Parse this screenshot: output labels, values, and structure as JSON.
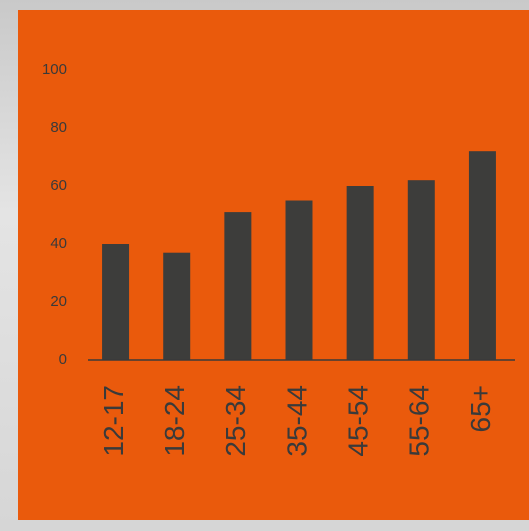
{
  "chart_data": {
    "type": "bar",
    "categories": [
      "12-17",
      "18-24",
      "25-34",
      "35-44",
      "45-54",
      "55-64",
      "65+"
    ],
    "values": [
      40,
      37,
      51,
      55,
      60,
      62,
      72
    ],
    "color": "#3d3d3b",
    "ylim": [
      0,
      100
    ],
    "yticks": [
      0,
      20,
      40,
      60,
      80,
      100
    ],
    "grid": false
  }
}
